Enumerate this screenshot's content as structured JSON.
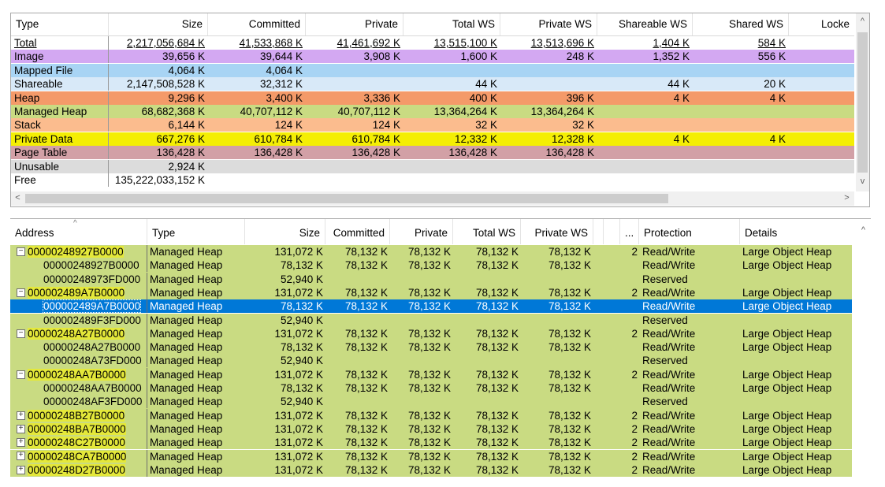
{
  "summary": {
    "columns": [
      "Type",
      "Size",
      "Committed",
      "Private",
      "Total WS",
      "Private WS",
      "Shareable WS",
      "Shared WS",
      "Locke"
    ],
    "rows": [
      {
        "type": "Total",
        "color": "#ffffff",
        "cells": [
          "2,217,056,684 K",
          "41,533,868 K",
          "41,461,692 K",
          "13,515,100 K",
          "13,513,696 K",
          "1,404 K",
          "584 K",
          ""
        ]
      },
      {
        "type": "Image",
        "color": "#d3a8f2",
        "cells": [
          "39,656 K",
          "39,644 K",
          "3,908 K",
          "1,600 K",
          "248 K",
          "1,352 K",
          "556 K",
          ""
        ]
      },
      {
        "type": "Mapped File",
        "color": "#a8d4f4",
        "cells": [
          "4,064 K",
          "4,064 K",
          "",
          "",
          "",
          "",
          "",
          ""
        ]
      },
      {
        "type": "Shareable",
        "color": "#d8e9f8",
        "cells": [
          "2,147,508,528 K",
          "32,312 K",
          "",
          "44 K",
          "",
          "44 K",
          "20 K",
          ""
        ]
      },
      {
        "type": "Heap",
        "color": "#f49a69",
        "cells": [
          "9,296 K",
          "3,400 K",
          "3,336 K",
          "400 K",
          "396 K",
          "4 K",
          "4 K",
          ""
        ]
      },
      {
        "type": "Managed Heap",
        "color": "#c9db82",
        "cells": [
          "68,682,368 K",
          "40,707,112 K",
          "40,707,112 K",
          "13,364,264 K",
          "13,364,264 K",
          "",
          "",
          ""
        ]
      },
      {
        "type": "Stack",
        "color": "#fbbc8e",
        "cells": [
          "6,144 K",
          "124 K",
          "124 K",
          "32 K",
          "32 K",
          "",
          "",
          ""
        ]
      },
      {
        "type": "Private Data",
        "color": "#f4ee04",
        "cells": [
          "667,276 K",
          "610,784 K",
          "610,784 K",
          "12,332 K",
          "12,328 K",
          "4 K",
          "4 K",
          ""
        ]
      },
      {
        "type": "Page Table",
        "color": "#d2a0a6",
        "cells": [
          "136,428 K",
          "136,428 K",
          "136,428 K",
          "136,428 K",
          "136,428 K",
          "",
          "",
          ""
        ]
      },
      {
        "type": "Unusable",
        "color": "#dcdcdc",
        "cells": [
          "2,924 K",
          "",
          "",
          "",
          "",
          "",
          "",
          ""
        ]
      },
      {
        "type": "Free",
        "color": "#ffffff",
        "cells": [
          "135,222,033,152 K",
          "",
          "",
          "",
          "",
          "",
          "",
          ""
        ]
      }
    ],
    "scroll_left_arrow": "<",
    "scroll_right_arrow": ">",
    "scroll_up_arrow": "^",
    "scroll_down_arrow": "v"
  },
  "regions": {
    "columns": [
      "Address",
      "Type",
      "Size",
      "Committed",
      "Private",
      "Total WS",
      "Private WS",
      "",
      "",
      "...",
      "Protection",
      "Details"
    ],
    "sort_caret": "^",
    "scroll_up_arrow": "^",
    "rows": [
      {
        "toggle": "−",
        "indent": 0,
        "address": "00000248927B0000",
        "type": "Managed Heap",
        "size": "131,072 K",
        "committed": "78,132 K",
        "private": "78,132 K",
        "total_ws": "78,132 K",
        "private_ws": "78,132 K",
        "blocks": "2",
        "protection": "Read/Write",
        "details": "Large Object Heap",
        "selected": false
      },
      {
        "toggle": "",
        "indent": 1,
        "address": "00000248927B0000",
        "type": "Managed Heap",
        "size": "78,132 K",
        "committed": "78,132 K",
        "private": "78,132 K",
        "total_ws": "78,132 K",
        "private_ws": "78,132 K",
        "blocks": "",
        "protection": "Read/Write",
        "details": "Large Object Heap",
        "selected": false
      },
      {
        "toggle": "",
        "indent": 1,
        "address": "00000248973FD000",
        "type": "Managed Heap",
        "size": "52,940 K",
        "committed": "",
        "private": "",
        "total_ws": "",
        "private_ws": "",
        "blocks": "",
        "protection": "Reserved",
        "details": "",
        "selected": false
      },
      {
        "toggle": "−",
        "indent": 0,
        "address": "000002489A7B0000",
        "type": "Managed Heap",
        "size": "131,072 K",
        "committed": "78,132 K",
        "private": "78,132 K",
        "total_ws": "78,132 K",
        "private_ws": "78,132 K",
        "blocks": "2",
        "protection": "Read/Write",
        "details": "Large Object Heap",
        "selected": false
      },
      {
        "toggle": "",
        "indent": 1,
        "address": "000002489A7B0000",
        "type": "Managed Heap",
        "size": "78,132 K",
        "committed": "78,132 K",
        "private": "78,132 K",
        "total_ws": "78,132 K",
        "private_ws": "78,132 K",
        "blocks": "",
        "protection": "Read/Write",
        "details": "Large Object Heap",
        "selected": true
      },
      {
        "toggle": "",
        "indent": 1,
        "address": "000002489F3FD000",
        "type": "Managed Heap",
        "size": "52,940 K",
        "committed": "",
        "private": "",
        "total_ws": "",
        "private_ws": "",
        "blocks": "",
        "protection": "Reserved",
        "details": "",
        "selected": false
      },
      {
        "toggle": "−",
        "indent": 0,
        "address": "00000248A27B0000",
        "type": "Managed Heap",
        "size": "131,072 K",
        "committed": "78,132 K",
        "private": "78,132 K",
        "total_ws": "78,132 K",
        "private_ws": "78,132 K",
        "blocks": "2",
        "protection": "Read/Write",
        "details": "Large Object Heap",
        "selected": false
      },
      {
        "toggle": "",
        "indent": 1,
        "address": "00000248A27B0000",
        "type": "Managed Heap",
        "size": "78,132 K",
        "committed": "78,132 K",
        "private": "78,132 K",
        "total_ws": "78,132 K",
        "private_ws": "78,132 K",
        "blocks": "",
        "protection": "Read/Write",
        "details": "Large Object Heap",
        "selected": false
      },
      {
        "toggle": "",
        "indent": 1,
        "address": "00000248A73FD000",
        "type": "Managed Heap",
        "size": "52,940 K",
        "committed": "",
        "private": "",
        "total_ws": "",
        "private_ws": "",
        "blocks": "",
        "protection": "Reserved",
        "details": "",
        "selected": false
      },
      {
        "toggle": "−",
        "indent": 0,
        "address": "00000248AA7B0000",
        "type": "Managed Heap",
        "size": "131,072 K",
        "committed": "78,132 K",
        "private": "78,132 K",
        "total_ws": "78,132 K",
        "private_ws": "78,132 K",
        "blocks": "2",
        "protection": "Read/Write",
        "details": "Large Object Heap",
        "selected": false
      },
      {
        "toggle": "",
        "indent": 1,
        "address": "00000248AA7B0000",
        "type": "Managed Heap",
        "size": "78,132 K",
        "committed": "78,132 K",
        "private": "78,132 K",
        "total_ws": "78,132 K",
        "private_ws": "78,132 K",
        "blocks": "",
        "protection": "Read/Write",
        "details": "Large Object Heap",
        "selected": false
      },
      {
        "toggle": "",
        "indent": 1,
        "address": "00000248AF3FD000",
        "type": "Managed Heap",
        "size": "52,940 K",
        "committed": "",
        "private": "",
        "total_ws": "",
        "private_ws": "",
        "blocks": "",
        "protection": "Reserved",
        "details": "",
        "selected": false
      },
      {
        "toggle": "+",
        "indent": 0,
        "address": "00000248B27B0000",
        "type": "Managed Heap",
        "size": "131,072 K",
        "committed": "78,132 K",
        "private": "78,132 K",
        "total_ws": "78,132 K",
        "private_ws": "78,132 K",
        "blocks": "2",
        "protection": "Read/Write",
        "details": "Large Object Heap",
        "selected": false
      },
      {
        "toggle": "+",
        "indent": 0,
        "address": "00000248BA7B0000",
        "type": "Managed Heap",
        "size": "131,072 K",
        "committed": "78,132 K",
        "private": "78,132 K",
        "total_ws": "78,132 K",
        "private_ws": "78,132 K",
        "blocks": "2",
        "protection": "Read/Write",
        "details": "Large Object Heap",
        "selected": false
      },
      {
        "toggle": "+",
        "indent": 0,
        "address": "00000248C27B0000",
        "type": "Managed Heap",
        "size": "131,072 K",
        "committed": "78,132 K",
        "private": "78,132 K",
        "total_ws": "78,132 K",
        "private_ws": "78,132 K",
        "blocks": "2",
        "protection": "Read/Write",
        "details": "Large Object Heap",
        "selected": false
      },
      {
        "toggle": "+",
        "indent": 0,
        "address": "00000248CA7B0000",
        "type": "Managed Heap",
        "size": "131,072 K",
        "committed": "78,132 K",
        "private": "78,132 K",
        "total_ws": "78,132 K",
        "private_ws": "78,132 K",
        "blocks": "2",
        "protection": "Read/Write",
        "details": "Large Object Heap",
        "selected": false
      },
      {
        "toggle": "+",
        "indent": 0,
        "address": "00000248D27B0000",
        "type": "Managed Heap",
        "size": "131,072 K",
        "committed": "78,132 K",
        "private": "78,132 K",
        "total_ws": "78,132 K",
        "private_ws": "78,132 K",
        "blocks": "2",
        "protection": "Read/Write",
        "details": "Large Object Heap",
        "selected": false
      }
    ]
  },
  "colors": {
    "managed_heap_row": "#c9db82",
    "selection": "#0078d7",
    "address_highlight": "#e4e83a"
  }
}
